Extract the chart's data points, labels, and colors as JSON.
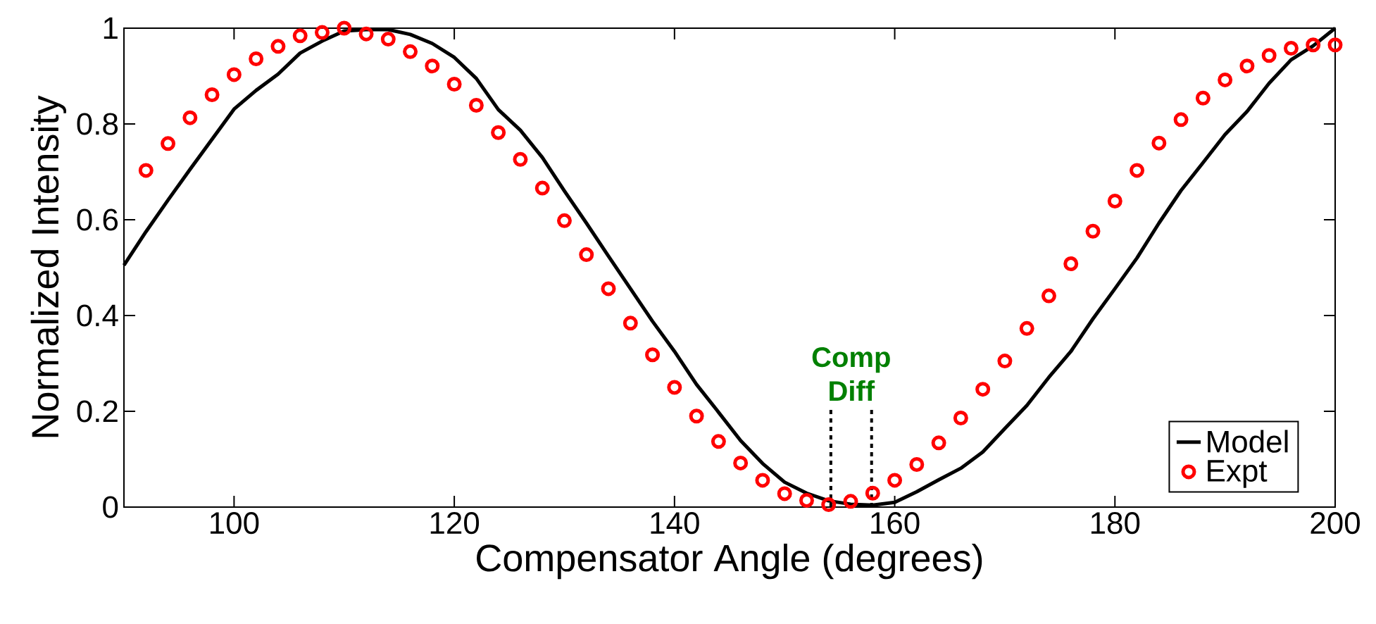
{
  "chart_data": {
    "type": "line",
    "xlabel": "Compensator Angle (degrees)",
    "ylabel": "Normalized Intensity",
    "xlim": [
      90,
      200
    ],
    "xticks": [
      100,
      120,
      140,
      160,
      180,
      200
    ],
    "ylim": [
      0,
      1
    ],
    "yticks": [
      0,
      0.2,
      0.4,
      0.6,
      0.8,
      1
    ],
    "grid": false,
    "legend": "bottom right",
    "series": [
      {
        "name": "Model",
        "color": "#000000",
        "marker": "none",
        "line_style": "solid",
        "x": [
          90,
          92,
          94,
          96,
          98,
          100,
          102,
          104,
          106,
          108,
          110,
          112,
          114,
          116,
          118,
          120,
          122,
          124,
          126,
          128,
          130,
          132,
          134,
          136,
          138,
          140,
          142,
          144,
          146,
          148,
          150,
          152,
          154,
          156,
          158,
          160,
          162,
          164,
          166,
          168,
          170,
          172,
          174,
          176,
          178,
          180,
          182,
          184,
          186,
          188,
          190,
          192,
          194,
          196,
          198,
          200
        ],
        "values": [
          0.505,
          0.575,
          0.641,
          0.705,
          0.768,
          0.831,
          0.87,
          0.904,
          0.948,
          0.973,
          0.994,
          0.997,
          0.997,
          0.987,
          0.968,
          0.939,
          0.895,
          0.83,
          0.787,
          0.73,
          0.66,
          0.593,
          0.524,
          0.456,
          0.388,
          0.325,
          0.256,
          0.198,
          0.139,
          0.091,
          0.052,
          0.029,
          0.013,
          0.006,
          0.004,
          0.01,
          0.032,
          0.057,
          0.081,
          0.115,
          0.164,
          0.212,
          0.271,
          0.325,
          0.393,
          0.456,
          0.52,
          0.593,
          0.661,
          0.719,
          0.778,
          0.826,
          0.885,
          0.934,
          0.963,
          1.0
        ]
      },
      {
        "name": "Expt",
        "type": "scatter",
        "color": "#ff0000",
        "marker": "circle",
        "x": [
          92,
          94,
          96,
          98,
          100,
          102,
          104,
          106,
          108,
          110,
          112,
          114,
          116,
          118,
          120,
          122,
          124,
          126,
          128,
          130,
          132,
          134,
          136,
          138,
          140,
          142,
          144,
          146,
          148,
          150,
          152,
          154,
          156,
          158,
          160,
          162,
          164,
          166,
          168,
          170,
          172,
          174,
          176,
          178,
          180,
          182,
          184,
          186,
          188,
          190,
          192,
          194,
          196,
          198,
          200
        ],
        "values": [
          0.703,
          0.759,
          0.813,
          0.861,
          0.903,
          0.936,
          0.962,
          0.984,
          0.991,
          1.0,
          0.988,
          0.977,
          0.951,
          0.921,
          0.883,
          0.839,
          0.782,
          0.726,
          0.666,
          0.598,
          0.527,
          0.456,
          0.384,
          0.318,
          0.25,
          0.19,
          0.137,
          0.092,
          0.056,
          0.028,
          0.014,
          0.005,
          0.012,
          0.029,
          0.056,
          0.089,
          0.134,
          0.186,
          0.246,
          0.305,
          0.373,
          0.441,
          0.508,
          0.576,
          0.639,
          0.703,
          0.76,
          0.809,
          0.854,
          0.892,
          0.921,
          0.943,
          0.958,
          0.965,
          0.965
        ]
      }
    ],
    "ref_lines": [
      {
        "axis": "x",
        "value": 154.2,
        "color": "#000000",
        "line_style": "dashed"
      },
      {
        "axis": "x",
        "value": 157.9,
        "color": "#000000",
        "line_style": "dashed"
      }
    ],
    "annotations": [
      "Comp Diff"
    ]
  }
}
